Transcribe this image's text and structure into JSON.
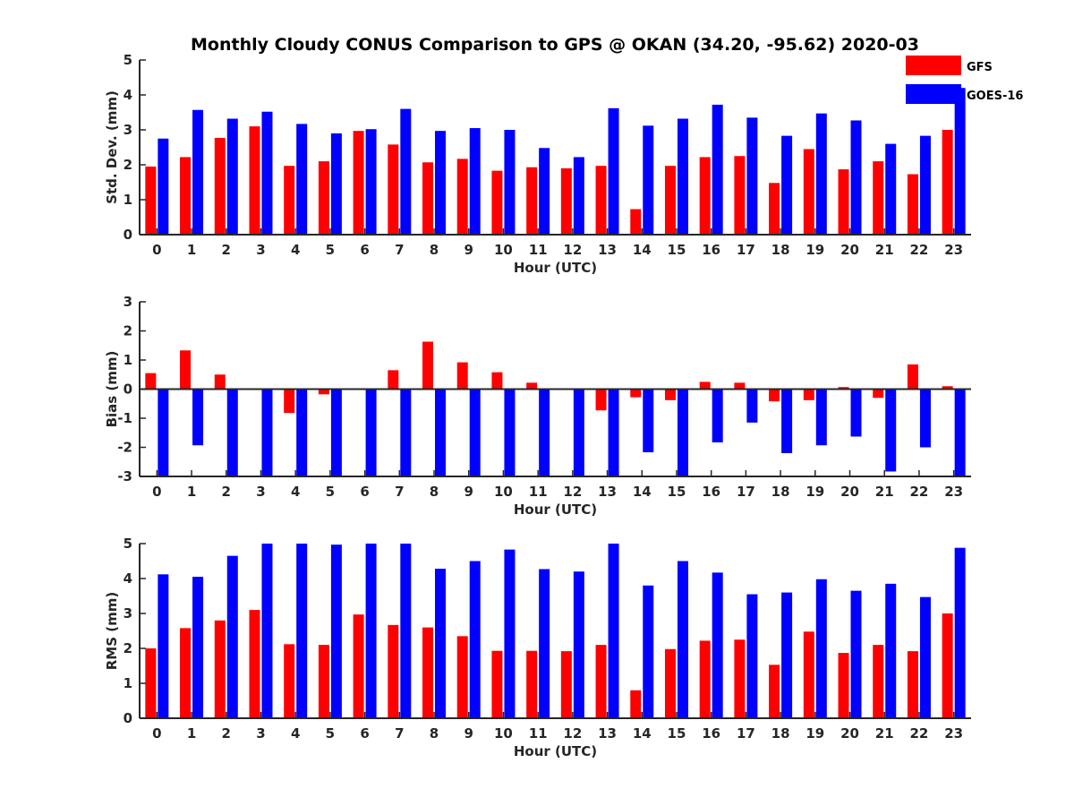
{
  "figure": {
    "title": "Monthly Cloudy CONUS Comparison to GPS @ OKAN (34.20, -95.62) 2020-03"
  },
  "legend": {
    "placement": "top-right",
    "items": [
      {
        "label": "GFS",
        "color": "#ff0000"
      },
      {
        "label": "GOES-16",
        "color": "#0000ff"
      }
    ]
  },
  "chart_data": [
    {
      "type": "bar",
      "title": "Monthly Cloudy CONUS Comparison to GPS @ OKAN (34.20, -95.62) 2020-03",
      "xlabel": "Hour (UTC)",
      "ylabel": "Std. Dev. (mm)",
      "ylim": [
        0,
        5
      ],
      "yticks": [
        0,
        1,
        2,
        3,
        4,
        5
      ],
      "grid": false,
      "categories": [
        "0",
        "1",
        "2",
        "3",
        "4",
        "5",
        "6",
        "7",
        "8",
        "9",
        "10",
        "11",
        "12",
        "13",
        "14",
        "15",
        "16",
        "17",
        "18",
        "19",
        "20",
        "21",
        "22",
        "23"
      ],
      "series": [
        {
          "name": "GFS",
          "color": "#ff0000",
          "values": [
            1.95,
            2.22,
            2.77,
            3.1,
            1.97,
            2.1,
            2.97,
            2.58,
            2.07,
            2.17,
            1.83,
            1.93,
            1.9,
            1.97,
            0.73,
            1.97,
            2.22,
            2.25,
            1.48,
            2.45,
            1.87,
            2.1,
            1.73,
            3.0
          ]
        },
        {
          "name": "GOES-16",
          "color": "#0000ff",
          "values": [
            2.75,
            3.57,
            3.32,
            3.52,
            3.17,
            2.9,
            3.02,
            3.6,
            2.97,
            3.05,
            3.0,
            2.48,
            2.22,
            3.62,
            3.12,
            3.32,
            3.72,
            3.35,
            2.83,
            3.47,
            3.27,
            2.6,
            2.83,
            4.2
          ]
        }
      ]
    },
    {
      "type": "bar",
      "xlabel": "Hour (UTC)",
      "ylabel": "Bias (mm)",
      "ylim": [
        -3,
        3
      ],
      "yticks": [
        -3,
        -2,
        -1,
        0,
        1,
        2,
        3
      ],
      "grid": false,
      "zero_line": true,
      "categories": [
        "0",
        "1",
        "2",
        "3",
        "4",
        "5",
        "6",
        "7",
        "8",
        "9",
        "10",
        "11",
        "12",
        "13",
        "14",
        "15",
        "16",
        "17",
        "18",
        "19",
        "20",
        "21",
        "22",
        "23"
      ],
      "series": [
        {
          "name": "GFS",
          "color": "#ff0000",
          "values": [
            0.55,
            1.33,
            0.5,
            0.0,
            -0.82,
            -0.18,
            0.02,
            0.65,
            1.63,
            0.92,
            0.58,
            0.22,
            0.02,
            -0.73,
            -0.28,
            -0.38,
            0.25,
            0.22,
            -0.42,
            -0.38,
            0.07,
            -0.3,
            0.85,
            0.1
          ]
        },
        {
          "name": "GOES-16",
          "color": "#0000ff",
          "values": [
            -3.0,
            -1.93,
            -3.0,
            -3.0,
            -3.0,
            -3.0,
            -3.0,
            -3.0,
            -3.0,
            -3.0,
            -3.0,
            -3.0,
            -3.0,
            -3.0,
            -2.17,
            -3.0,
            -1.83,
            -1.15,
            -2.2,
            -1.93,
            -1.63,
            -2.83,
            -2.0,
            -2.98
          ]
        }
      ]
    },
    {
      "type": "bar",
      "xlabel": "Hour (UTC)",
      "ylabel": "RMS (mm)",
      "ylim": [
        0,
        5
      ],
      "yticks": [
        0,
        1,
        2,
        3,
        4,
        5
      ],
      "grid": false,
      "categories": [
        "0",
        "1",
        "2",
        "3",
        "4",
        "5",
        "6",
        "7",
        "8",
        "9",
        "10",
        "11",
        "12",
        "13",
        "14",
        "15",
        "16",
        "17",
        "18",
        "19",
        "20",
        "21",
        "22",
        "23"
      ],
      "series": [
        {
          "name": "GFS",
          "color": "#ff0000",
          "values": [
            2.0,
            2.58,
            2.8,
            3.1,
            2.12,
            2.1,
            2.97,
            2.67,
            2.6,
            2.35,
            1.93,
            1.93,
            1.92,
            2.1,
            0.8,
            1.98,
            2.22,
            2.25,
            1.53,
            2.48,
            1.87,
            2.1,
            1.92,
            3.0
          ]
        },
        {
          "name": "GOES-16",
          "color": "#0000ff",
          "values": [
            4.12,
            4.05,
            4.65,
            5.0,
            5.0,
            4.97,
            5.0,
            5.0,
            4.28,
            4.5,
            4.83,
            4.27,
            4.2,
            5.0,
            3.8,
            4.5,
            4.17,
            3.55,
            3.6,
            3.98,
            3.65,
            3.85,
            3.47,
            4.88
          ]
        }
      ]
    }
  ]
}
